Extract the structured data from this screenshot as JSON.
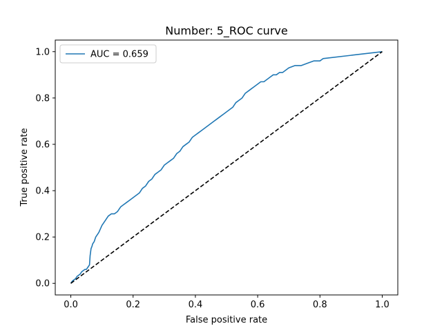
{
  "chart_data": {
    "type": "line",
    "title": "Number: 5_ROC curve",
    "xlabel": "False positive rate",
    "ylabel": "True positive rate",
    "xlim": [
      -0.05,
      1.05
    ],
    "ylim": [
      -0.05,
      1.05
    ],
    "xticks": [
      0.0,
      0.2,
      0.4,
      0.6,
      0.8,
      1.0
    ],
    "yticks": [
      0.0,
      0.2,
      0.4,
      0.6,
      0.8,
      1.0
    ],
    "xtick_labels": [
      "0.0",
      "0.2",
      "0.4",
      "0.6",
      "0.8",
      "1.0"
    ],
    "ytick_labels": [
      "0.0",
      "0.2",
      "0.4",
      "0.6",
      "0.8",
      "1.0"
    ],
    "grid": false,
    "legend_position": "upper-left",
    "series": [
      {
        "name": "AUC = 0.659",
        "color": "#1f77b4",
        "style": "solid",
        "x": [
          0.0,
          0.005,
          0.01,
          0.015,
          0.02,
          0.025,
          0.03,
          0.035,
          0.04,
          0.045,
          0.05,
          0.055,
          0.06,
          0.062,
          0.065,
          0.068,
          0.07,
          0.075,
          0.08,
          0.09,
          0.1,
          0.11,
          0.12,
          0.13,
          0.14,
          0.15,
          0.16,
          0.17,
          0.18,
          0.19,
          0.2,
          0.21,
          0.22,
          0.23,
          0.24,
          0.25,
          0.26,
          0.27,
          0.28,
          0.29,
          0.3,
          0.31,
          0.32,
          0.33,
          0.34,
          0.35,
          0.36,
          0.37,
          0.38,
          0.39,
          0.4,
          0.41,
          0.42,
          0.43,
          0.44,
          0.45,
          0.46,
          0.47,
          0.48,
          0.49,
          0.5,
          0.51,
          0.52,
          0.53,
          0.54,
          0.55,
          0.56,
          0.57,
          0.58,
          0.59,
          0.6,
          0.61,
          0.62,
          0.63,
          0.64,
          0.65,
          0.66,
          0.67,
          0.68,
          0.69,
          0.7,
          0.72,
          0.74,
          0.76,
          0.78,
          0.8,
          0.81,
          1.0
        ],
        "y": [
          0.0,
          0.01,
          0.015,
          0.02,
          0.03,
          0.035,
          0.04,
          0.05,
          0.055,
          0.06,
          0.06,
          0.07,
          0.08,
          0.12,
          0.15,
          0.16,
          0.17,
          0.18,
          0.2,
          0.22,
          0.25,
          0.27,
          0.29,
          0.3,
          0.3,
          0.31,
          0.33,
          0.34,
          0.35,
          0.36,
          0.37,
          0.38,
          0.39,
          0.41,
          0.42,
          0.44,
          0.45,
          0.47,
          0.48,
          0.49,
          0.51,
          0.52,
          0.53,
          0.54,
          0.56,
          0.57,
          0.59,
          0.6,
          0.61,
          0.63,
          0.64,
          0.65,
          0.66,
          0.67,
          0.68,
          0.69,
          0.7,
          0.71,
          0.72,
          0.73,
          0.74,
          0.75,
          0.76,
          0.78,
          0.79,
          0.8,
          0.82,
          0.83,
          0.84,
          0.85,
          0.86,
          0.87,
          0.87,
          0.88,
          0.89,
          0.9,
          0.9,
          0.91,
          0.91,
          0.92,
          0.93,
          0.94,
          0.94,
          0.95,
          0.96,
          0.96,
          0.97,
          1.0
        ]
      },
      {
        "name": "",
        "color": "#000000",
        "style": "dashed",
        "x": [
          0.0,
          1.0
        ],
        "y": [
          0.0,
          1.0
        ]
      }
    ]
  }
}
